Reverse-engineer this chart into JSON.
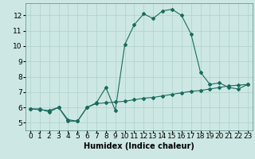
{
  "title": "",
  "xlabel": "Humidex (Indice chaleur)",
  "ylabel": "",
  "background_color": "#cde8e4",
  "line_color": "#1a6b5e",
  "grid_color": "#aed0ca",
  "x_line1": [
    0,
    1,
    2,
    3,
    4,
    5,
    6,
    7,
    8,
    9,
    10,
    11,
    12,
    13,
    14,
    15,
    16,
    17,
    18,
    19,
    20,
    21,
    22,
    23
  ],
  "y_line1": [
    5.9,
    5.9,
    5.7,
    6.0,
    5.1,
    5.1,
    6.0,
    6.3,
    7.3,
    5.8,
    10.1,
    11.4,
    12.1,
    11.8,
    12.3,
    12.4,
    12.0,
    10.8,
    8.3,
    7.5,
    7.6,
    7.3,
    7.2,
    7.5
  ],
  "x_line2": [
    0,
    1,
    2,
    3,
    4,
    5,
    6,
    7,
    8,
    9,
    10,
    11,
    12,
    13,
    14,
    15,
    16,
    17,
    18,
    19,
    20,
    21,
    22,
    23
  ],
  "y_line2": [
    5.9,
    5.85,
    5.8,
    6.0,
    5.2,
    5.1,
    6.0,
    6.25,
    6.3,
    6.35,
    6.4,
    6.5,
    6.6,
    6.65,
    6.75,
    6.85,
    6.95,
    7.05,
    7.1,
    7.2,
    7.3,
    7.4,
    7.45,
    7.5
  ],
  "xlim": [
    -0.5,
    23.5
  ],
  "ylim": [
    4.5,
    12.8
  ],
  "yticks": [
    5,
    6,
    7,
    8,
    9,
    10,
    11,
    12
  ],
  "xticks": [
    0,
    1,
    2,
    3,
    4,
    5,
    6,
    7,
    8,
    9,
    10,
    11,
    12,
    13,
    14,
    15,
    16,
    17,
    18,
    19,
    20,
    21,
    22,
    23
  ],
  "marker": "D",
  "marker_size": 2.0,
  "line_width": 0.8,
  "font_size_label": 7,
  "font_size_tick": 6.5
}
